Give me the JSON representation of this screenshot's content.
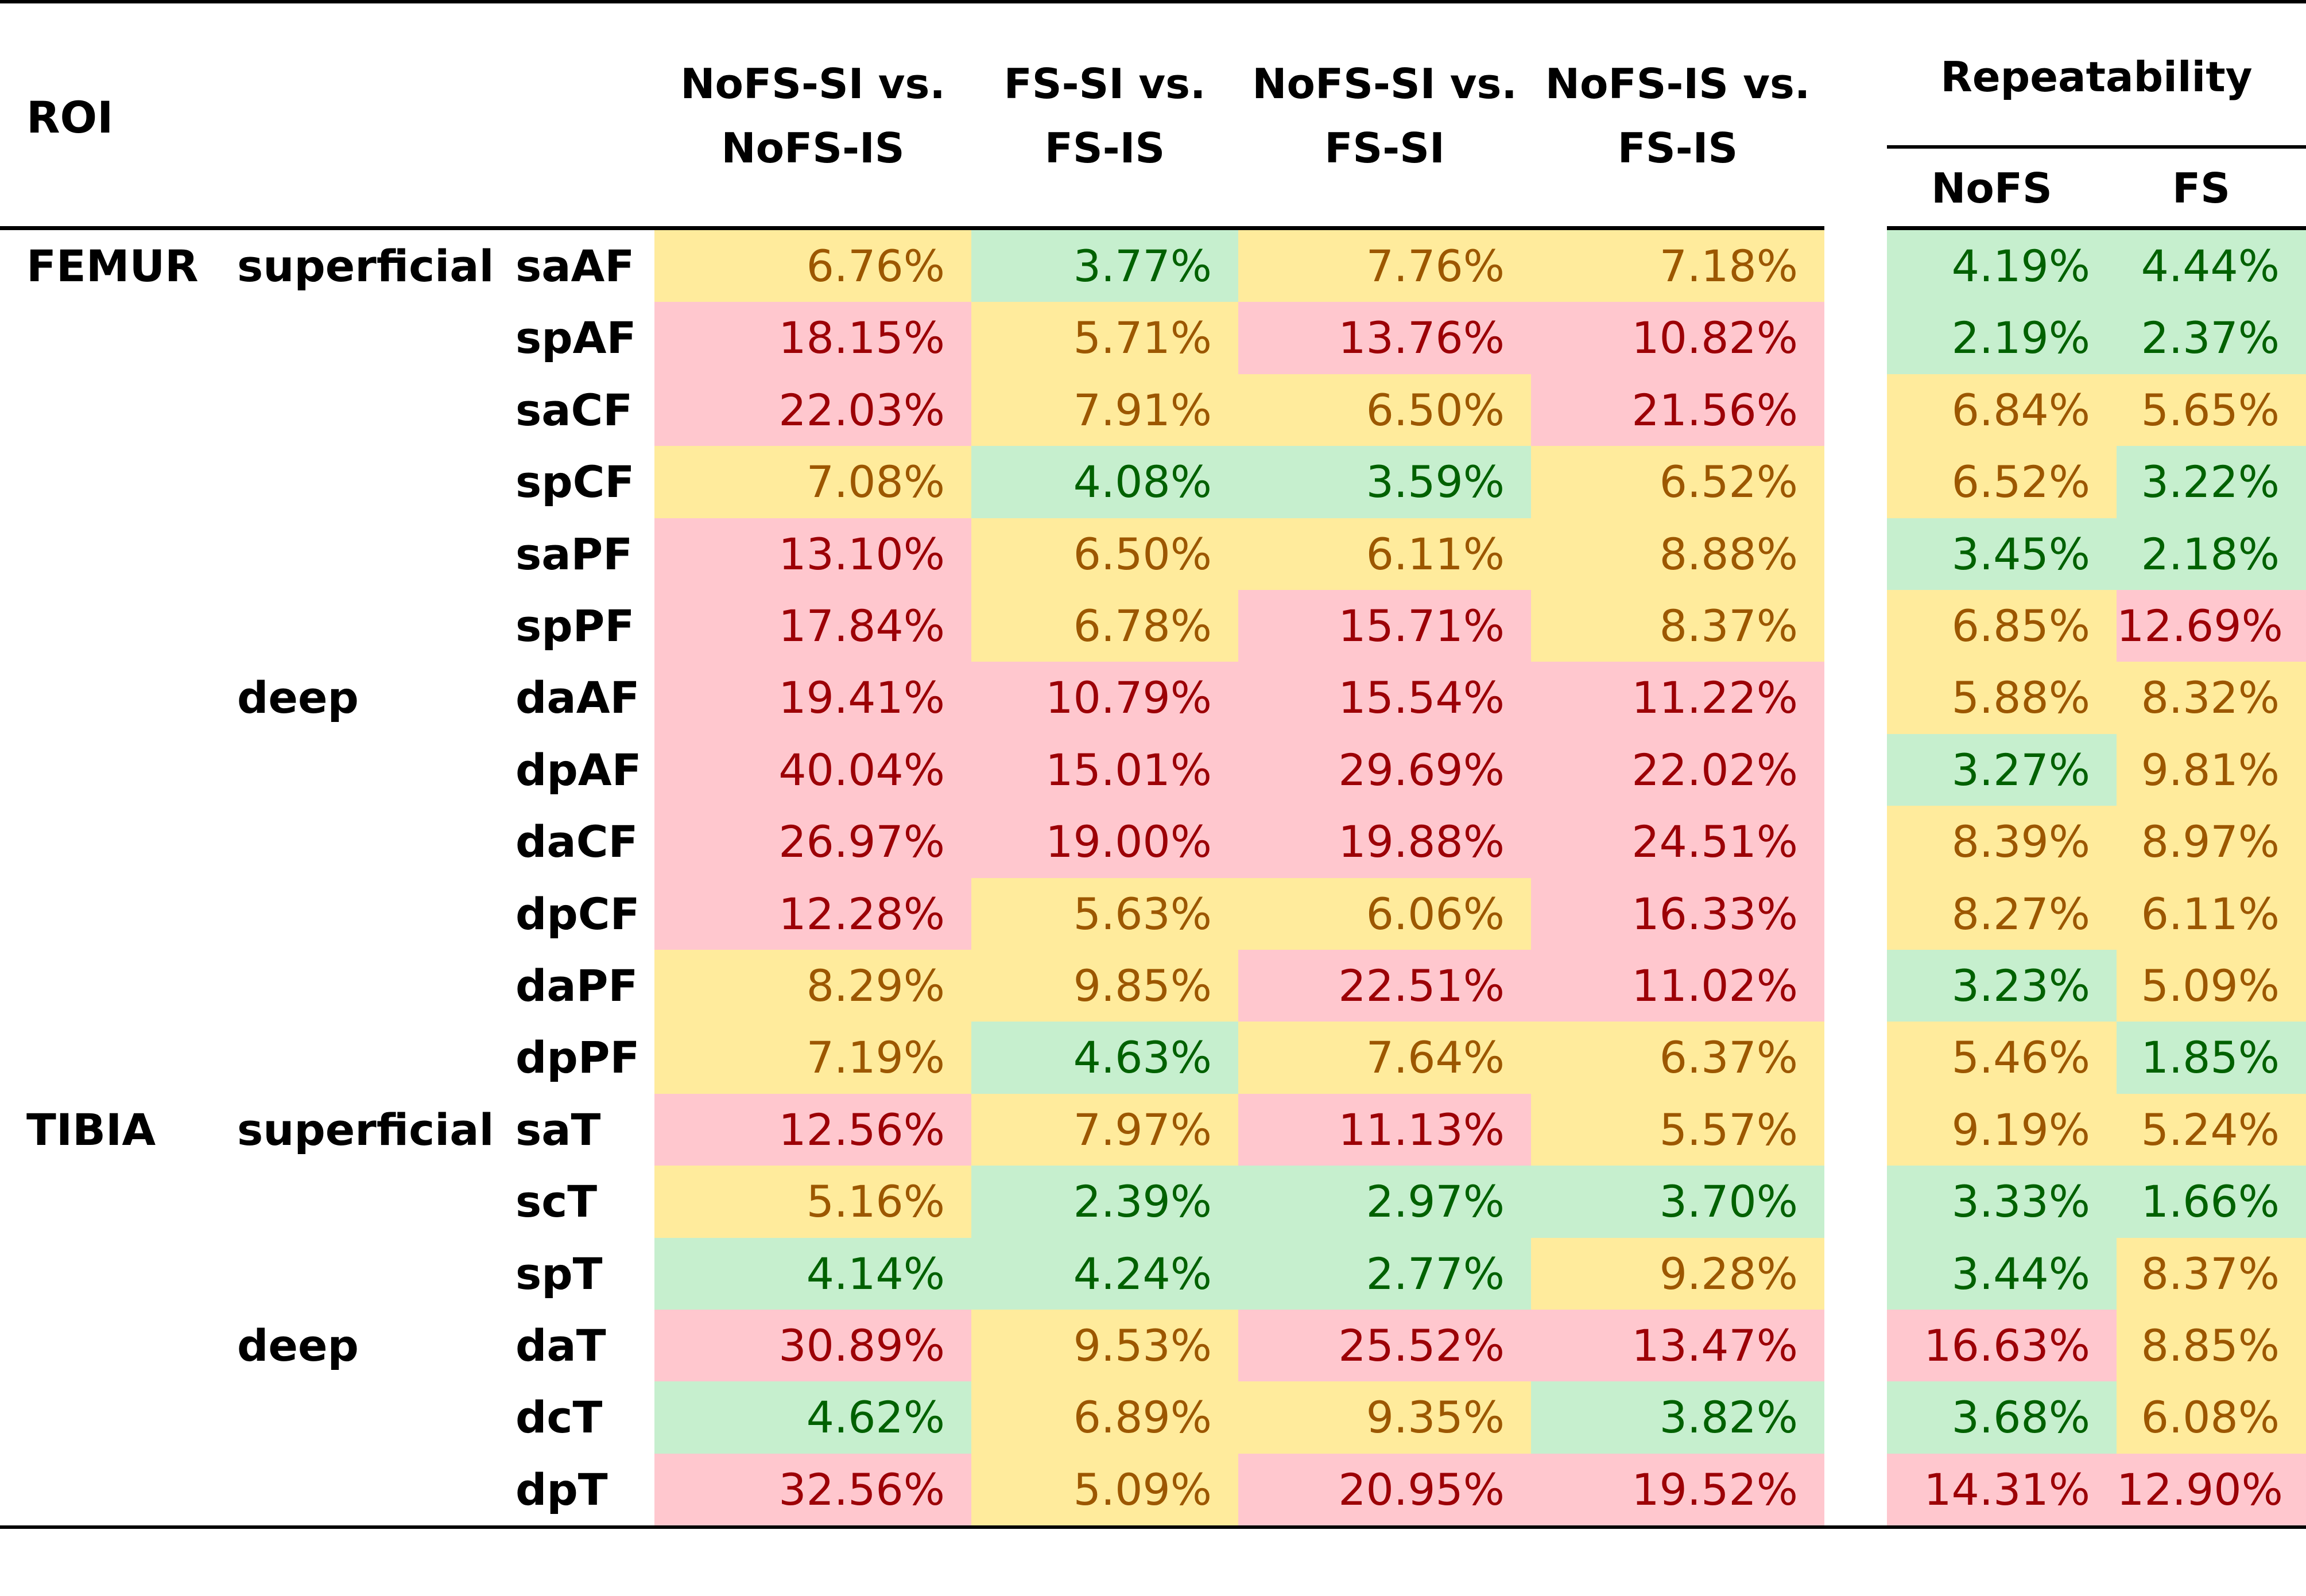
{
  "headers": {
    "roi": "ROI",
    "cols": [
      [
        "NoFS-SI vs.",
        "NoFS-IS"
      ],
      [
        "FS-SI vs.",
        "FS-IS"
      ],
      [
        "NoFS-SI vs.",
        "FS-SI"
      ],
      [
        "NoFS-IS vs.",
        "FS-IS"
      ]
    ],
    "repeatability": "Repeatability",
    "rep_cols": [
      "NoFS",
      "FS"
    ]
  },
  "colors": {
    "green_bg": "#c6efce",
    "green_text": "#006100",
    "yellow_bg": "#ffeb9c",
    "yellow_text": "#9c5700",
    "red_bg": "#ffc7ce",
    "red_text": "#9c0006"
  },
  "rows": [
    {
      "bone": "FEMUR",
      "layer": "superficial",
      "roi": "saAF",
      "values": [
        "6.76%",
        "3.77%",
        "7.76%",
        "7.18%",
        "4.19%",
        "4.44%"
      ],
      "colors": [
        "y",
        "g",
        "y",
        "y",
        "g",
        "g"
      ]
    },
    {
      "bone": "",
      "layer": "",
      "roi": "spAF",
      "values": [
        "18.15%",
        "5.71%",
        "13.76%",
        "10.82%",
        "2.19%",
        "2.37%"
      ],
      "colors": [
        "r",
        "y",
        "r",
        "r",
        "g",
        "g"
      ]
    },
    {
      "bone": "",
      "layer": "",
      "roi": "saCF",
      "values": [
        "22.03%",
        "7.91%",
        "6.50%",
        "21.56%",
        "6.84%",
        "5.65%"
      ],
      "colors": [
        "r",
        "y",
        "y",
        "r",
        "y",
        "y"
      ]
    },
    {
      "bone": "",
      "layer": "",
      "roi": "spCF",
      "values": [
        "7.08%",
        "4.08%",
        "3.59%",
        "6.52%",
        "6.52%",
        "3.22%"
      ],
      "colors": [
        "y",
        "g",
        "g",
        "y",
        "y",
        "g"
      ]
    },
    {
      "bone": "",
      "layer": "",
      "roi": "saPF",
      "values": [
        "13.10%",
        "6.50%",
        "6.11%",
        "8.88%",
        "3.45%",
        "2.18%"
      ],
      "colors": [
        "r",
        "y",
        "y",
        "y",
        "g",
        "g"
      ]
    },
    {
      "bone": "",
      "layer": "",
      "roi": "spPF",
      "values": [
        "17.84%",
        "6.78%",
        "15.71%",
        "8.37%",
        "6.85%",
        "12.69%"
      ],
      "colors": [
        "r",
        "y",
        "r",
        "y",
        "y",
        "r"
      ]
    },
    {
      "bone": "",
      "layer": "deep",
      "roi": "daAF",
      "values": [
        "19.41%",
        "10.79%",
        "15.54%",
        "11.22%",
        "5.88%",
        "8.32%"
      ],
      "colors": [
        "r",
        "r",
        "r",
        "r",
        "y",
        "y"
      ]
    },
    {
      "bone": "",
      "layer": "",
      "roi": "dpAF",
      "values": [
        "40.04%",
        "15.01%",
        "29.69%",
        "22.02%",
        "3.27%",
        "9.81%"
      ],
      "colors": [
        "r",
        "r",
        "r",
        "r",
        "g",
        "y"
      ]
    },
    {
      "bone": "",
      "layer": "",
      "roi": "daCF",
      "values": [
        "26.97%",
        "19.00%",
        "19.88%",
        "24.51%",
        "8.39%",
        "8.97%"
      ],
      "colors": [
        "r",
        "r",
        "r",
        "r",
        "y",
        "y"
      ]
    },
    {
      "bone": "",
      "layer": "",
      "roi": "dpCF",
      "values": [
        "12.28%",
        "5.63%",
        "6.06%",
        "16.33%",
        "8.27%",
        "6.11%"
      ],
      "colors": [
        "r",
        "y",
        "y",
        "r",
        "y",
        "y"
      ]
    },
    {
      "bone": "",
      "layer": "",
      "roi": "daPF",
      "values": [
        "8.29%",
        "9.85%",
        "22.51%",
        "11.02%",
        "3.23%",
        "5.09%"
      ],
      "colors": [
        "y",
        "y",
        "r",
        "r",
        "g",
        "y"
      ]
    },
    {
      "bone": "",
      "layer": "",
      "roi": "dpPF",
      "values": [
        "7.19%",
        "4.63%",
        "7.64%",
        "6.37%",
        "5.46%",
        "1.85%"
      ],
      "colors": [
        "y",
        "g",
        "y",
        "y",
        "y",
        "g"
      ]
    },
    {
      "bone": "TIBIA",
      "layer": "superficial",
      "roi": "saT",
      "values": [
        "12.56%",
        "7.97%",
        "11.13%",
        "5.57%",
        "9.19%",
        "5.24%"
      ],
      "colors": [
        "r",
        "y",
        "r",
        "y",
        "y",
        "y"
      ]
    },
    {
      "bone": "",
      "layer": "",
      "roi": "scT",
      "values": [
        "5.16%",
        "2.39%",
        "2.97%",
        "3.70%",
        "3.33%",
        "1.66%"
      ],
      "colors": [
        "y",
        "g",
        "g",
        "g",
        "g",
        "g"
      ]
    },
    {
      "bone": "",
      "layer": "",
      "roi": "spT",
      "values": [
        "4.14%",
        "4.24%",
        "2.77%",
        "9.28%",
        "3.44%",
        "8.37%"
      ],
      "colors": [
        "g",
        "g",
        "g",
        "y",
        "g",
        "y"
      ]
    },
    {
      "bone": "",
      "layer": "deep",
      "roi": "daT",
      "values": [
        "30.89%",
        "9.53%",
        "25.52%",
        "13.47%",
        "16.63%",
        "8.85%"
      ],
      "colors": [
        "r",
        "y",
        "r",
        "r",
        "r",
        "y"
      ]
    },
    {
      "bone": "",
      "layer": "",
      "roi": "dcT",
      "values": [
        "4.62%",
        "6.89%",
        "9.35%",
        "3.82%",
        "3.68%",
        "6.08%"
      ],
      "colors": [
        "g",
        "y",
        "y",
        "g",
        "g",
        "y"
      ]
    },
    {
      "bone": "",
      "layer": "",
      "roi": "dpT",
      "values": [
        "32.56%",
        "5.09%",
        "20.95%",
        "19.52%",
        "14.31%",
        "12.90%"
      ],
      "colors": [
        "r",
        "y",
        "r",
        "r",
        "r",
        "r"
      ]
    }
  ]
}
